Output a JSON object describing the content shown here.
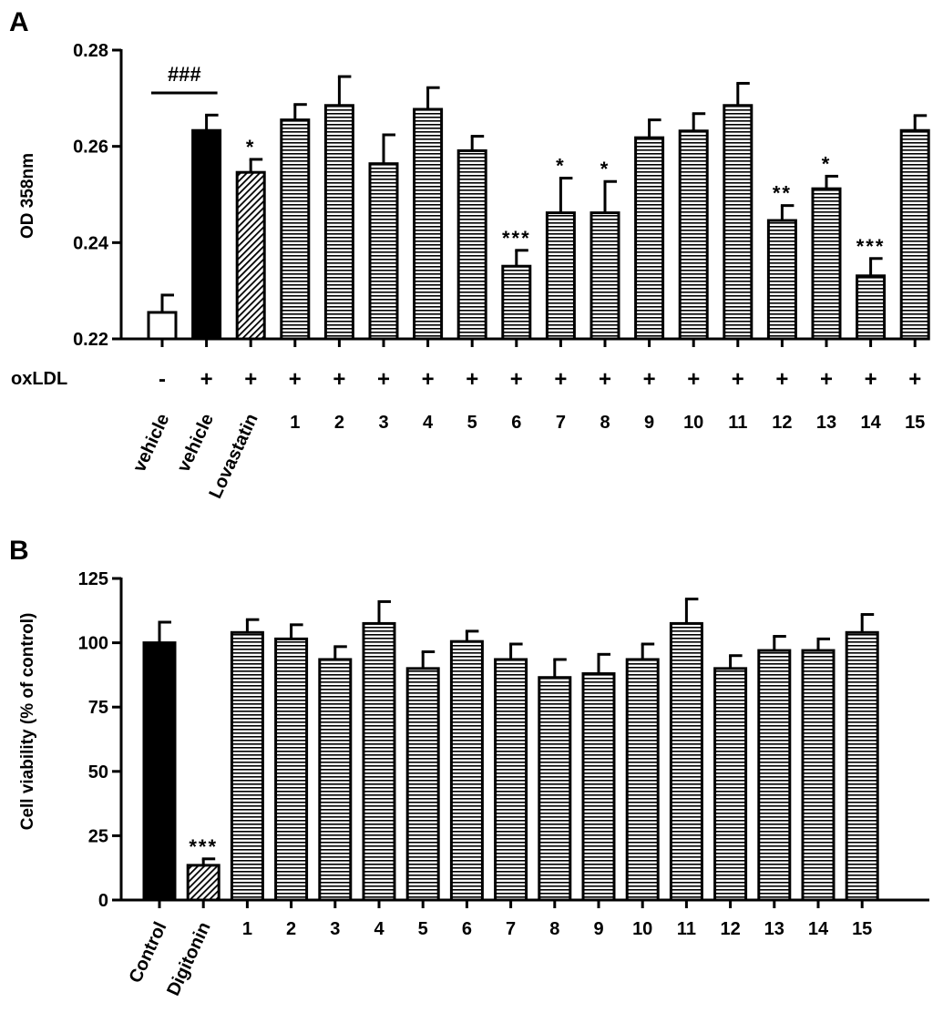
{
  "chart_data": [
    {
      "panel": "A",
      "type": "bar",
      "ylabel": "OD 358nm",
      "ylim": [
        0.22,
        0.28
      ],
      "yticks": [
        0.22,
        0.24,
        0.26,
        0.28
      ],
      "ytick_labels": [
        "0.22",
        "0.24",
        "0.26",
        "0.28"
      ],
      "treatment_label": "oxLDL",
      "comparison_label": "###",
      "categories": [
        "vehicle",
        "vehicle",
        "Lovastatin",
        "1",
        "2",
        "3",
        "4",
        "5",
        "6",
        "7",
        "8",
        "9",
        "10",
        "11",
        "12",
        "13",
        "14",
        "15"
      ],
      "oxldl": [
        "-",
        "+",
        "+",
        "+",
        "+",
        "+",
        "+",
        "+",
        "+",
        "+",
        "+",
        "+",
        "+",
        "+",
        "+",
        "+",
        "+",
        "+"
      ],
      "values": [
        0.2255,
        0.2633,
        0.2546,
        0.2655,
        0.2685,
        0.2564,
        0.2677,
        0.2591,
        0.2351,
        0.2462,
        0.2462,
        0.2618,
        0.2632,
        0.2685,
        0.2446,
        0.2512,
        0.2331,
        0.2633
      ],
      "errors": [
        0.0036,
        0.0032,
        0.0027,
        0.0032,
        0.006,
        0.006,
        0.0045,
        0.003,
        0.0033,
        0.0072,
        0.0065,
        0.0037,
        0.0036,
        0.0046,
        0.0031,
        0.0026,
        0.0036,
        0.0031
      ],
      "significance": [
        "",
        "",
        "*",
        "",
        "",
        "",
        "",
        "",
        "***",
        "*",
        "*",
        "",
        "",
        "",
        "**",
        "*",
        "***",
        ""
      ],
      "fills": [
        "white",
        "black",
        "diagonal",
        "horizontal",
        "horizontal",
        "horizontal",
        "horizontal",
        "horizontal",
        "horizontal",
        "horizontal",
        "horizontal",
        "horizontal",
        "horizontal",
        "horizontal",
        "horizontal",
        "horizontal",
        "horizontal",
        "horizontal"
      ]
    },
    {
      "panel": "B",
      "type": "bar",
      "ylabel": "Cell viability (% of control)",
      "ylim": [
        0,
        125
      ],
      "yticks": [
        0,
        25,
        50,
        75,
        100,
        125
      ],
      "ytick_labels": [
        "0",
        "25",
        "50",
        "75",
        "100",
        "125"
      ],
      "categories": [
        "Control",
        "Digitonin",
        "1",
        "2",
        "3",
        "4",
        "5",
        "6",
        "7",
        "8",
        "9",
        "10",
        "11",
        "12",
        "13",
        "14",
        "15"
      ],
      "values": [
        100,
        13.5,
        104,
        101.5,
        93.5,
        107.5,
        90,
        100.5,
        93.5,
        86.5,
        88,
        93.5,
        107.5,
        90,
        97,
        97,
        104
      ],
      "errors": [
        8,
        2.5,
        5,
        5.5,
        5,
        8.5,
        6.5,
        4,
        6,
        7,
        7.5,
        6,
        9.5,
        5,
        5.5,
        4.5,
        7
      ],
      "significance": [
        "",
        "***",
        "",
        "",
        "",
        "",
        "",
        "",
        "",
        "",
        "",
        "",
        "",
        "",
        "",
        "",
        ""
      ],
      "fills": [
        "black",
        "diagonal",
        "horizontal",
        "horizontal",
        "horizontal",
        "horizontal",
        "horizontal",
        "horizontal",
        "horizontal",
        "horizontal",
        "horizontal",
        "horizontal",
        "horizontal",
        "horizontal",
        "horizontal",
        "horizontal",
        "horizontal"
      ]
    }
  ]
}
